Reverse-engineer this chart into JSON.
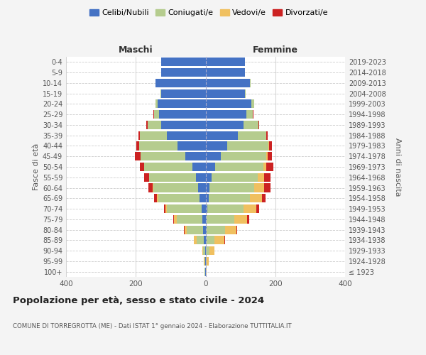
{
  "age_groups": [
    "100+",
    "95-99",
    "90-94",
    "85-89",
    "80-84",
    "75-79",
    "70-74",
    "65-69",
    "60-64",
    "55-59",
    "50-54",
    "45-49",
    "40-44",
    "35-39",
    "30-34",
    "25-29",
    "20-24",
    "15-19",
    "10-14",
    "5-9",
    "0-4"
  ],
  "birth_years": [
    "≤ 1923",
    "1924-1928",
    "1929-1933",
    "1934-1938",
    "1939-1943",
    "1944-1948",
    "1949-1953",
    "1954-1958",
    "1959-1963",
    "1964-1968",
    "1969-1973",
    "1974-1978",
    "1979-1983",
    "1984-1988",
    "1989-1993",
    "1994-1998",
    "1999-2003",
    "2004-2008",
    "2009-2013",
    "2014-2018",
    "2019-2023"
  ],
  "males_celibi": [
    2,
    2,
    2,
    5,
    8,
    10,
    12,
    18,
    22,
    28,
    38,
    58,
    80,
    110,
    128,
    133,
    138,
    128,
    143,
    128,
    128
  ],
  "males_coniugati": [
    1,
    2,
    5,
    20,
    45,
    72,
    98,
    118,
    128,
    133,
    138,
    128,
    110,
    78,
    38,
    14,
    5,
    2,
    0,
    0,
    0
  ],
  "males_vedovi": [
    0,
    1,
    3,
    8,
    8,
    8,
    4,
    3,
    2,
    1,
    1,
    0,
    0,
    0,
    0,
    0,
    0,
    0,
    0,
    0,
    0
  ],
  "males_divorziati": [
    0,
    0,
    0,
    0,
    2,
    3,
    5,
    8,
    12,
    14,
    12,
    17,
    9,
    5,
    3,
    2,
    0,
    0,
    0,
    0,
    0
  ],
  "females_nubili": [
    1,
    1,
    2,
    3,
    4,
    4,
    6,
    10,
    12,
    18,
    28,
    43,
    62,
    92,
    108,
    118,
    132,
    112,
    128,
    112,
    112
  ],
  "females_coniugate": [
    1,
    3,
    10,
    22,
    52,
    78,
    102,
    118,
    128,
    132,
    138,
    132,
    118,
    82,
    43,
    18,
    8,
    3,
    2,
    0,
    0
  ],
  "females_vedove": [
    1,
    5,
    14,
    28,
    32,
    38,
    38,
    33,
    28,
    18,
    9,
    4,
    2,
    1,
    0,
    0,
    0,
    0,
    0,
    0,
    0
  ],
  "females_divorziate": [
    0,
    0,
    0,
    2,
    3,
    5,
    8,
    10,
    18,
    19,
    20,
    12,
    8,
    4,
    3,
    1,
    0,
    0,
    0,
    0,
    0
  ],
  "colors": {
    "celibi_nubili": "#4472c4",
    "coniugati": "#b5cc8e",
    "vedovi": "#f0c060",
    "divorziati": "#cc2222"
  },
  "xlim": 400,
  "title": "Popolazione per età, sesso e stato civile - 2024",
  "subtitle": "COMUNE DI TORREGROTTA (ME) - Dati ISTAT 1° gennaio 2024 - Elaborazione TUTTITALIA.IT",
  "ylabel_left": "Fasce di età",
  "ylabel_right": "Anni di nascita",
  "label_maschi": "Maschi",
  "label_femmine": "Femmine",
  "bg_color": "#f4f4f4",
  "plot_bg_color": "#ffffff",
  "legend_labels": [
    "Celibi/Nubili",
    "Coniugati/e",
    "Vedovi/e",
    "Divorzati/e"
  ]
}
